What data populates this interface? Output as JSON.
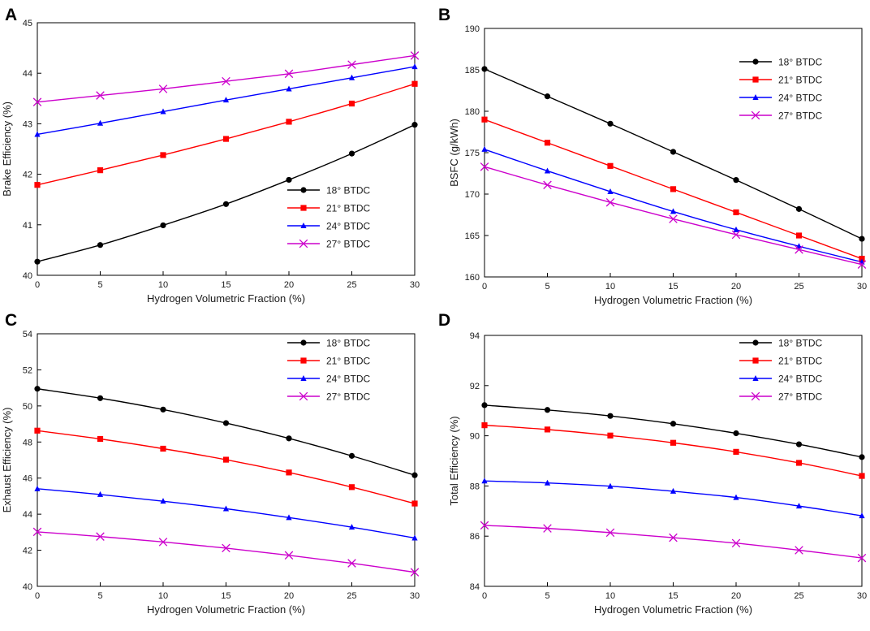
{
  "chart_data": [
    {
      "panel": "A",
      "type": "line",
      "xlabel": "Hydrogen Volumetric Fraction (%)",
      "ylabel": "Brake Efficiency (%)",
      "xlim": [
        0,
        30
      ],
      "ylim": [
        40,
        45
      ],
      "xticks": [
        0,
        5,
        10,
        15,
        20,
        25,
        30
      ],
      "yticks": [
        40,
        41,
        42,
        43,
        44,
        45
      ],
      "legend_position": "center-right",
      "x": [
        0,
        5,
        10,
        15,
        20,
        25,
        30
      ],
      "series": [
        {
          "name": "18° BTDC",
          "color": "#000000",
          "marker": "circle",
          "values": [
            40.27,
            40.6,
            40.99,
            41.41,
            41.89,
            42.41,
            42.98
          ]
        },
        {
          "name": "21° BTDC",
          "color": "#ff0000",
          "marker": "square",
          "values": [
            41.79,
            42.08,
            42.38,
            42.7,
            43.04,
            43.4,
            43.79
          ]
        },
        {
          "name": "24° BTDC",
          "color": "#0000ff",
          "marker": "triangle",
          "values": [
            42.79,
            43.01,
            43.24,
            43.47,
            43.69,
            43.91,
            44.13
          ]
        },
        {
          "name": "27° BTDC",
          "color": "#cc00cc",
          "marker": "x",
          "values": [
            43.43,
            43.56,
            43.69,
            43.84,
            43.99,
            44.17,
            44.35
          ]
        }
      ]
    },
    {
      "panel": "B",
      "type": "line",
      "xlabel": "Hydrogen Volumetric Fraction (%)",
      "ylabel": "BSFC (g/kWh)",
      "xlim": [
        0,
        30
      ],
      "ylim": [
        160,
        190
      ],
      "xticks": [
        0,
        5,
        10,
        15,
        20,
        25,
        30
      ],
      "yticks": [
        160,
        165,
        170,
        175,
        180,
        185,
        190
      ],
      "legend_position": "top-right",
      "x": [
        0,
        5,
        10,
        15,
        20,
        25,
        30
      ],
      "series": [
        {
          "name": "18° BTDC",
          "color": "#000000",
          "marker": "circle",
          "values": [
            185.1,
            181.8,
            178.5,
            175.1,
            171.7,
            168.2,
            164.6
          ]
        },
        {
          "name": "21° BTDC",
          "color": "#ff0000",
          "marker": "square",
          "values": [
            179.0,
            176.2,
            173.4,
            170.6,
            167.8,
            165.0,
            162.2
          ]
        },
        {
          "name": "24° BTDC",
          "color": "#0000ff",
          "marker": "triangle",
          "values": [
            175.4,
            172.8,
            170.3,
            167.9,
            165.7,
            163.7,
            161.8
          ]
        },
        {
          "name": "27° BTDC",
          "color": "#cc00cc",
          "marker": "x",
          "values": [
            173.3,
            171.1,
            169.0,
            167.0,
            165.1,
            163.3,
            161.5
          ]
        }
      ]
    },
    {
      "panel": "C",
      "type": "line",
      "xlabel": "Hydrogen Volumetric Fraction (%)",
      "ylabel": "Exhaust Efficiency (%)",
      "xlim": [
        0,
        30
      ],
      "ylim": [
        40,
        54
      ],
      "xticks": [
        0,
        5,
        10,
        15,
        20,
        25,
        30
      ],
      "yticks": [
        40,
        42,
        44,
        46,
        48,
        50,
        52,
        54
      ],
      "legend_position": "top-right",
      "x": [
        0,
        5,
        10,
        15,
        20,
        25,
        30
      ],
      "series": [
        {
          "name": "18° BTDC",
          "color": "#000000",
          "marker": "circle",
          "values": [
            50.95,
            50.43,
            49.8,
            49.05,
            48.2,
            47.23,
            46.16
          ]
        },
        {
          "name": "21° BTDC",
          "color": "#ff0000",
          "marker": "square",
          "values": [
            48.63,
            48.17,
            47.63,
            47.02,
            46.31,
            45.5,
            44.59
          ]
        },
        {
          "name": "24° BTDC",
          "color": "#0000ff",
          "marker": "triangle",
          "values": [
            45.41,
            45.09,
            44.72,
            44.3,
            43.81,
            43.28,
            42.68
          ]
        },
        {
          "name": "27° BTDC",
          "color": "#cc00cc",
          "marker": "x",
          "values": [
            43.02,
            42.76,
            42.46,
            42.12,
            41.72,
            41.28,
            40.78
          ]
        }
      ]
    },
    {
      "panel": "D",
      "type": "line",
      "xlabel": "Hydrogen Volumetric Fraction (%)",
      "ylabel": "Total Efficiency (%)",
      "xlim": [
        0,
        30
      ],
      "ylim": [
        84,
        94
      ],
      "xticks": [
        0,
        5,
        10,
        15,
        20,
        25,
        30
      ],
      "yticks": [
        84,
        86,
        88,
        90,
        92,
        94
      ],
      "legend_position": "top-right",
      "x": [
        0,
        5,
        10,
        15,
        20,
        25,
        30
      ],
      "series": [
        {
          "name": "18° BTDC",
          "color": "#000000",
          "marker": "circle",
          "values": [
            91.22,
            91.03,
            90.79,
            90.48,
            90.1,
            89.66,
            89.15
          ]
        },
        {
          "name": "21° BTDC",
          "color": "#ff0000",
          "marker": "square",
          "values": [
            90.42,
            90.25,
            90.01,
            89.72,
            89.36,
            88.92,
            88.4
          ]
        },
        {
          "name": "24° BTDC",
          "color": "#0000ff",
          "marker": "triangle",
          "values": [
            88.2,
            88.12,
            87.99,
            87.79,
            87.54,
            87.2,
            86.81
          ]
        },
        {
          "name": "27° BTDC",
          "color": "#cc00cc",
          "marker": "x",
          "values": [
            86.43,
            86.31,
            86.14,
            85.94,
            85.72,
            85.44,
            85.13
          ]
        }
      ]
    }
  ]
}
